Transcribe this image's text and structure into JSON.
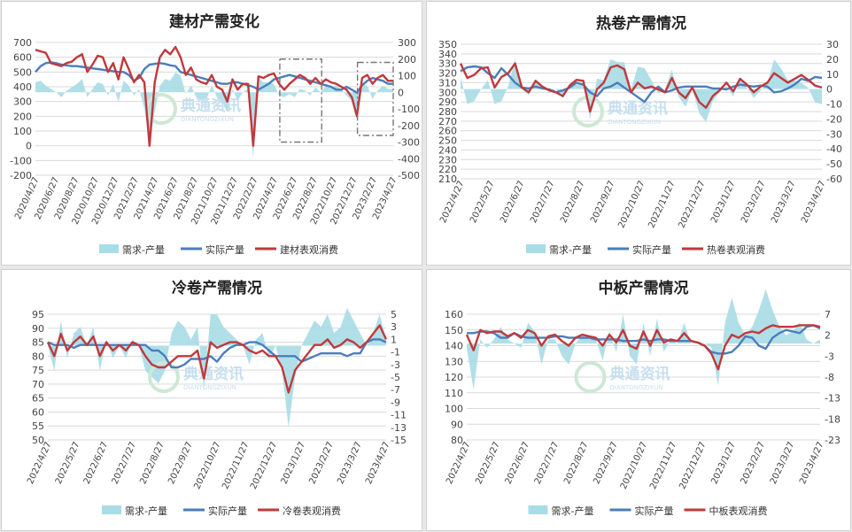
{
  "legend_labels": {
    "diff": "需求-产量",
    "prod": "实际产量"
  },
  "colors": {
    "diff": "#a8dce6",
    "prod": "#4a7ebb",
    "cons": "#c0393b",
    "grid": "#d9d9d9",
    "box": "#777777"
  },
  "watermark": {
    "cn": "典通资讯",
    "en": "DIANTONGZIXUN"
  },
  "chart_data": [
    {
      "type": "line",
      "title": "建材产需变化",
      "series_labels": {
        "diff": "需求-产量",
        "prod": "实际产量",
        "cons": "建材表观消费"
      },
      "x_labels": [
        "2020/4/27",
        "2020/6/27",
        "2020/8/27",
        "2020/10/27",
        "2020/12/27",
        "2021/2/27",
        "2021/4/27",
        "2021/6/27",
        "2021/8/27",
        "2021/10/27",
        "2021/12/27",
        "2022/2/27",
        "2022/4/27",
        "2022/6/27",
        "2022/8/27",
        "2022/10/27",
        "2022/12/27",
        "2023/2/27",
        "2023/4/27"
      ],
      "ylim": [
        -200,
        700
      ],
      "yticks": [
        -200,
        -100,
        0,
        100,
        200,
        300,
        400,
        500,
        600,
        700
      ],
      "y2lim": [
        -500,
        300
      ],
      "y2ticks": [
        -500,
        -400,
        -300,
        -200,
        -100,
        0,
        100,
        200,
        300
      ],
      "production": [
        500,
        540,
        560,
        565,
        560,
        550,
        545,
        540,
        540,
        535,
        530,
        525,
        520,
        515,
        510,
        505,
        500,
        500,
        480,
        440,
        460,
        520,
        550,
        555,
        560,
        555,
        545,
        540,
        500,
        490,
        480,
        470,
        460,
        450,
        440,
        430,
        420,
        420,
        430,
        430,
        420,
        410,
        400,
        380,
        400,
        420,
        450,
        460,
        470,
        480,
        470,
        460,
        450,
        440,
        430,
        420,
        410,
        400,
        380,
        380,
        400,
        380,
        360,
        410,
        440,
        460,
        450,
        440,
        420,
        420
      ],
      "consumption": [
        650,
        640,
        630,
        560,
        550,
        540,
        560,
        570,
        600,
        620,
        500,
        550,
        610,
        600,
        500,
        560,
        450,
        600,
        520,
        430,
        480,
        430,
        0,
        430,
        600,
        650,
        620,
        670,
        600,
        480,
        530,
        450,
        430,
        420,
        480,
        400,
        380,
        300,
        450,
        380,
        420,
        420,
        0,
        470,
        460,
        480,
        490,
        420,
        380,
        420,
        450,
        480,
        460,
        420,
        460,
        420,
        450,
        430,
        420,
        400,
        380,
        330,
        200,
        460,
        480,
        420,
        460,
        480,
        440,
        440
      ],
      "diff": [
        60,
        70,
        40,
        20,
        0,
        -30,
        10,
        30,
        50,
        80,
        -30,
        20,
        60,
        50,
        -20,
        50,
        -60,
        70,
        40,
        -20,
        20,
        -100,
        -300,
        -120,
        40,
        80,
        70,
        120,
        100,
        -10,
        40,
        -30,
        -50,
        -40,
        40,
        -30,
        -60,
        -120,
        20,
        -50,
        0,
        20,
        -400,
        90,
        60,
        60,
        50,
        -20,
        -30,
        -10,
        -30,
        20,
        10,
        -20,
        30,
        0,
        40,
        30,
        40,
        20,
        -20,
        -50,
        -160,
        50,
        40,
        -40,
        10,
        40,
        20,
        20
      ],
      "boxes": [
        {
          "x0": 0.683,
          "x1": 0.8,
          "y0": 200,
          "y1": -300
        },
        {
          "x0": 0.9,
          "x1": 1.0,
          "y0": 180,
          "y1": -260
        }
      ]
    },
    {
      "type": "line",
      "title": "热卷产需情况",
      "series_labels": {
        "diff": "需求-产量",
        "prod": "实际产量",
        "cons": "热卷表观消费"
      },
      "x_labels": [
        "2022/4/27",
        "2022/5/27",
        "2022/6/27",
        "2022/7/27",
        "2022/8/27",
        "2022/9/27",
        "2022/10/27",
        "2022/11/27",
        "2022/12/27",
        "2023/1/27",
        "2023/2/27",
        "2023/3/27",
        "2023/4/27"
      ],
      "ylim": [
        210,
        350
      ],
      "yticks": [
        210,
        220,
        230,
        240,
        250,
        260,
        270,
        280,
        290,
        300,
        310,
        320,
        330,
        340,
        350
      ],
      "y2lim": [
        -60,
        30
      ],
      "y2ticks": [
        -60,
        -50,
        -40,
        -30,
        -20,
        -10,
        0,
        10,
        20,
        30
      ],
      "production": [
        322,
        326,
        327,
        326,
        320,
        315,
        325,
        318,
        310,
        305,
        304,
        306,
        304,
        303,
        300,
        302,
        305,
        310,
        308,
        300,
        296,
        304,
        306,
        310,
        305,
        300,
        295,
        290,
        300,
        306,
        300,
        302,
        305,
        306,
        306,
        306,
        306,
        304,
        304,
        303,
        306,
        308,
        307,
        306,
        307,
        306,
        300,
        301,
        304,
        308,
        314,
        312,
        316,
        315
      ],
      "consumption": [
        330,
        315,
        318,
        325,
        326,
        305,
        316,
        320,
        330,
        305,
        300,
        312,
        306,
        302,
        300,
        296,
        307,
        313,
        312,
        280,
        303,
        310,
        326,
        328,
        324,
        300,
        310,
        304,
        306,
        303,
        300,
        315,
        300,
        294,
        305,
        290,
        284,
        296,
        302,
        310,
        301,
        314,
        308,
        300,
        306,
        310,
        320,
        315,
        310,
        314,
        318,
        313,
        307,
        305
      ],
      "diff": [
        8,
        -10,
        -8,
        0,
        6,
        -10,
        -8,
        2,
        20,
        0,
        -4,
        6,
        2,
        -2,
        0,
        -6,
        2,
        3,
        4,
        -20,
        7,
        6,
        20,
        18,
        18,
        0,
        15,
        14,
        6,
        -3,
        0,
        13,
        -5,
        -12,
        0,
        -16,
        -22,
        -8,
        -2,
        2,
        -5,
        8,
        1,
        -6,
        -1,
        4,
        20,
        14,
        6,
        6,
        4,
        1,
        -9,
        -10
      ]
    },
    {
      "type": "line",
      "title": "冷卷产需情况",
      "series_labels": {
        "diff": "需求-产量",
        "prod": "实际产量",
        "cons": "冷卷表观消费"
      },
      "x_labels": [
        "2022/4/27",
        "2022/5/27",
        "2022/6/27",
        "2022/7/27",
        "2022/8/27",
        "2022/9/27",
        "2022/10/27",
        "2022/11/27",
        "2022/12/27",
        "2023/1/27",
        "2023/2/27",
        "2023/3/27",
        "2023/4/27"
      ],
      "ylim": [
        50,
        95
      ],
      "yticks": [
        50,
        55,
        60,
        65,
        70,
        75,
        80,
        85,
        90,
        95
      ],
      "y2lim": [
        -15,
        5
      ],
      "y2ticks": [
        -15,
        -13,
        -11,
        -9,
        -7,
        -5,
        -3,
        -1,
        1,
        3,
        5
      ],
      "production": [
        85,
        84,
        84,
        84,
        83,
        84,
        84,
        84,
        84,
        84,
        84,
        84,
        84,
        84,
        84,
        84,
        82,
        82,
        80,
        76,
        76,
        77,
        79,
        79,
        79,
        80,
        78,
        81,
        83,
        84,
        84,
        85,
        85,
        84,
        82,
        80,
        80,
        80,
        80,
        78,
        79,
        80,
        81,
        81,
        81,
        81,
        80,
        81,
        81,
        85,
        86,
        86,
        85
      ],
      "consumption": [
        85,
        80,
        88,
        82,
        85,
        87,
        84,
        87,
        80,
        85,
        82,
        84,
        82,
        85,
        84,
        80,
        77,
        76,
        76,
        78,
        80,
        80,
        80,
        82,
        72,
        85,
        83,
        84,
        85,
        85,
        84,
        82,
        81,
        82,
        80,
        80,
        76,
        67,
        75,
        78,
        81,
        84,
        84,
        86,
        83,
        84,
        86,
        85,
        83,
        85,
        88,
        91,
        86
      ],
      "diff": [
        0,
        -4,
        4,
        -2,
        2,
        3,
        0,
        3,
        -4,
        1,
        -2,
        0,
        -2,
        1,
        0,
        -4,
        -5,
        -6,
        -4,
        2,
        4,
        3,
        1,
        3,
        -7,
        5,
        5,
        3,
        2,
        1,
        0,
        -3,
        1,
        2,
        -2,
        0,
        -4,
        -13,
        -5,
        0,
        2,
        4,
        3,
        5,
        2,
        3,
        6,
        4,
        2,
        0,
        2,
        5,
        1
      ]
    },
    {
      "type": "line",
      "title": "中板产需情况",
      "series_labels": {
        "diff": "需求-产量",
        "prod": "实际产量",
        "cons": "中板表观消费"
      },
      "x_labels": [
        "2022/4/27",
        "2022/5/27",
        "2022/6/27",
        "2022/7/27",
        "2022/8/27",
        "2022/9/27",
        "2022/10/27",
        "2022/11/27",
        "2022/12/27",
        "2023/1/27",
        "2023/2/27",
        "2023/3/27",
        "2023/4/27"
      ],
      "ylim": [
        80,
        160
      ],
      "yticks": [
        80,
        90,
        100,
        110,
        120,
        130,
        140,
        150,
        160
      ],
      "y2lim": [
        -23,
        7
      ],
      "y2ticks": [
        -23,
        -18,
        -13,
        -8,
        -3,
        2,
        7
      ],
      "production": [
        148,
        148,
        149,
        149,
        148,
        145,
        145,
        148,
        146,
        145,
        145,
        145,
        145,
        146,
        146,
        145,
        145,
        145,
        145,
        144,
        144,
        144,
        144,
        143,
        143,
        143,
        144,
        143,
        144,
        144,
        143,
        143,
        143,
        143,
        142,
        140,
        136,
        135,
        135,
        136,
        140,
        146,
        145,
        140,
        138,
        145,
        148,
        150,
        149,
        148,
        152,
        153,
        151
      ],
      "consumption": [
        147,
        137,
        150,
        148,
        149,
        149,
        146,
        148,
        145,
        150,
        148,
        140,
        146,
        147,
        143,
        140,
        145,
        147,
        146,
        145,
        140,
        147,
        142,
        150,
        140,
        138,
        149,
        140,
        150,
        142,
        144,
        143,
        148,
        143,
        142,
        140,
        135,
        125,
        140,
        147,
        145,
        148,
        149,
        148,
        151,
        153,
        152,
        152,
        152,
        153,
        153,
        153,
        152
      ],
      "diff": [
        -1,
        -11,
        1,
        -1,
        1,
        4,
        1,
        0,
        -1,
        5,
        3,
        -5,
        1,
        1,
        -3,
        -5,
        0,
        2,
        1,
        1,
        -4,
        3,
        -2,
        7,
        -3,
        -5,
        5,
        -3,
        6,
        -2,
        1,
        0,
        5,
        0,
        0,
        0,
        -1,
        -10,
        5,
        11,
        5,
        2,
        4,
        8,
        13,
        8,
        4,
        2,
        3,
        5,
        1,
        0,
        1
      ]
    }
  ]
}
